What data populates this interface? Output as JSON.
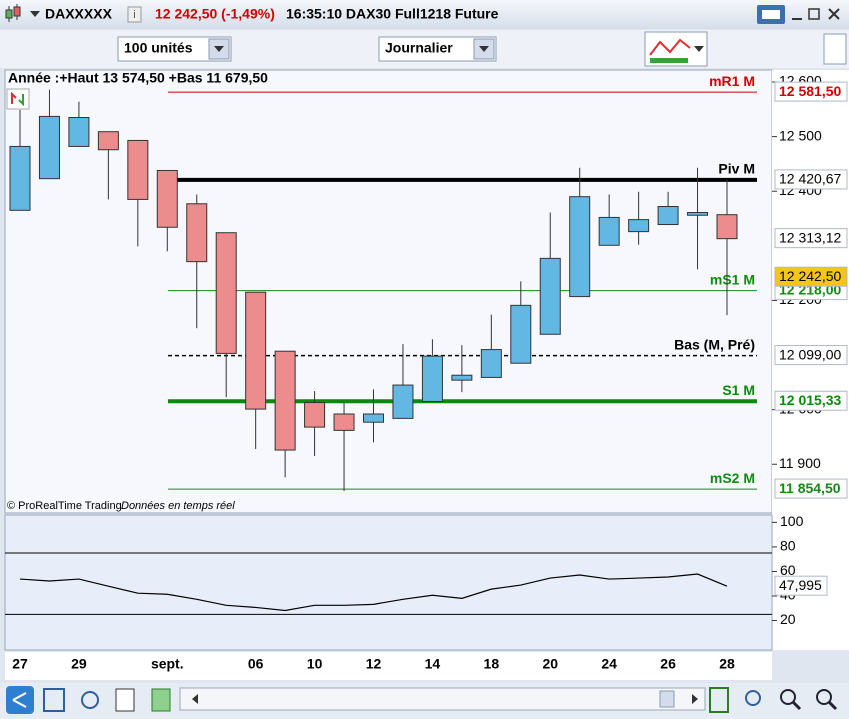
{
  "header": {
    "symbol": "DAXXXXX",
    "quote": "12 242,50 (-1,49%)",
    "info": "16:35:10 DAX30 Full1218 Future"
  },
  "toolbar": {
    "units": "100 unités",
    "period": "Journalier"
  },
  "chart_data": [
    {
      "type": "candlestick",
      "annotation": "Année :+Haut 13 574,50 +Bas 11 679,50",
      "source": "© ProRealTime Trading",
      "source_note": "Données en temps réel",
      "categories": [
        "27",
        null,
        "29",
        null,
        null,
        "sept.",
        null,
        null,
        "06",
        null,
        "10",
        null,
        "12",
        null,
        "14",
        null,
        "18",
        null,
        "20",
        null,
        "24",
        null,
        "26",
        null,
        "28"
      ],
      "open": [
        12365,
        12423,
        12482,
        12509,
        12493,
        12438,
        12377,
        12324,
        12215,
        12107,
        12013,
        11992,
        11977,
        11984,
        12015,
        12054,
        12059,
        12085,
        12138,
        12207,
        12301,
        12326,
        12339,
        12356,
        12357
      ],
      "high": [
        12549,
        12586,
        12564,
        12509,
        12493,
        12438,
        12394,
        12324,
        12215,
        12107,
        12034,
        12012,
        12037,
        12120,
        12129,
        12118,
        12174,
        12235,
        12361,
        12443,
        12394,
        12399,
        12399,
        12443,
        12421
      ],
      "low": [
        12365,
        12423,
        12482,
        12385,
        12299,
        12290,
        12149,
        12023,
        11928,
        11876,
        11915,
        11851,
        11940,
        11984,
        12015,
        12032,
        12059,
        12085,
        12138,
        12207,
        12301,
        12302,
        12339,
        12257,
        12173
      ],
      "close": [
        12482,
        12537,
        12535,
        12476,
        12385,
        12334,
        12271,
        12103,
        12001,
        11926,
        11968,
        11962,
        11992,
        12045,
        12098,
        12063,
        12110,
        12191,
        12277,
        12390,
        12352,
        12348,
        12372,
        12361,
        12313.12
      ],
      "up_color": "#62b8e2",
      "down_color": "#ec8c8c",
      "ylim": [
        11840,
        12622
      ],
      "yticks": [
        {
          "value": 12600,
          "label": "12 600"
        },
        {
          "value": 12500,
          "label": "12 500"
        },
        {
          "value": 12400,
          "label": "12 400"
        },
        {
          "value": 12200,
          "label": "12 200"
        },
        {
          "value": 12000,
          "label": "12 000"
        },
        {
          "value": 11900,
          "label": "11 900"
        }
      ],
      "levels": [
        {
          "name": "mR1 M",
          "value": 12581.5,
          "value_label": "12 581,50",
          "color": "#d40000",
          "width": 1,
          "dashed": false
        },
        {
          "name": "Piv M",
          "value": 12420.67,
          "value_label": "12 420,67",
          "color": "#000000",
          "width": 4,
          "dashed": false
        },
        {
          "name": "mS1 M",
          "value": 12218,
          "value_label": "12 218,00",
          "color": "#138a13",
          "width": 1,
          "dashed": false
        },
        {
          "name": "Bas (M, Pré)",
          "value": 12099,
          "value_label": "12 099,00",
          "color": "#000000",
          "width": 1.5,
          "dashed": true
        },
        {
          "name": "S1 M",
          "value": 12015.33,
          "value_label": "12 015,33",
          "color": "#0a8a0a",
          "width": 4,
          "dashed": false
        },
        {
          "name": "mS2 M",
          "value": 11854.5,
          "value_label": "11 854,50",
          "color": "#138a13",
          "width": 1,
          "dashed": false
        }
      ],
      "markers": [
        {
          "value": 12313.12,
          "label": "12 313,12",
          "color": "#000000",
          "background": "#ffffff"
        },
        {
          "value": 12242.5,
          "label": "12 242,50",
          "color": "#000000",
          "background": "#f5c518"
        }
      ]
    },
    {
      "type": "line",
      "values": [
        53.8,
        52.2,
        53.8,
        48.0,
        42.3,
        41.4,
        37.3,
        32.4,
        30.7,
        28.2,
        32.4,
        32.4,
        33.2,
        37.3,
        40.6,
        38.1,
        45.6,
        48.9,
        54.6,
        57.1,
        53.8,
        54.6,
        55.5,
        57.9,
        47.995
      ],
      "color": "#000000",
      "ylim": [
        -4,
        106
      ],
      "yticks": [
        100,
        80,
        60,
        40,
        20
      ],
      "hlines": [
        75,
        25
      ],
      "last": {
        "value": 47.995,
        "label": "47,995"
      }
    }
  ]
}
